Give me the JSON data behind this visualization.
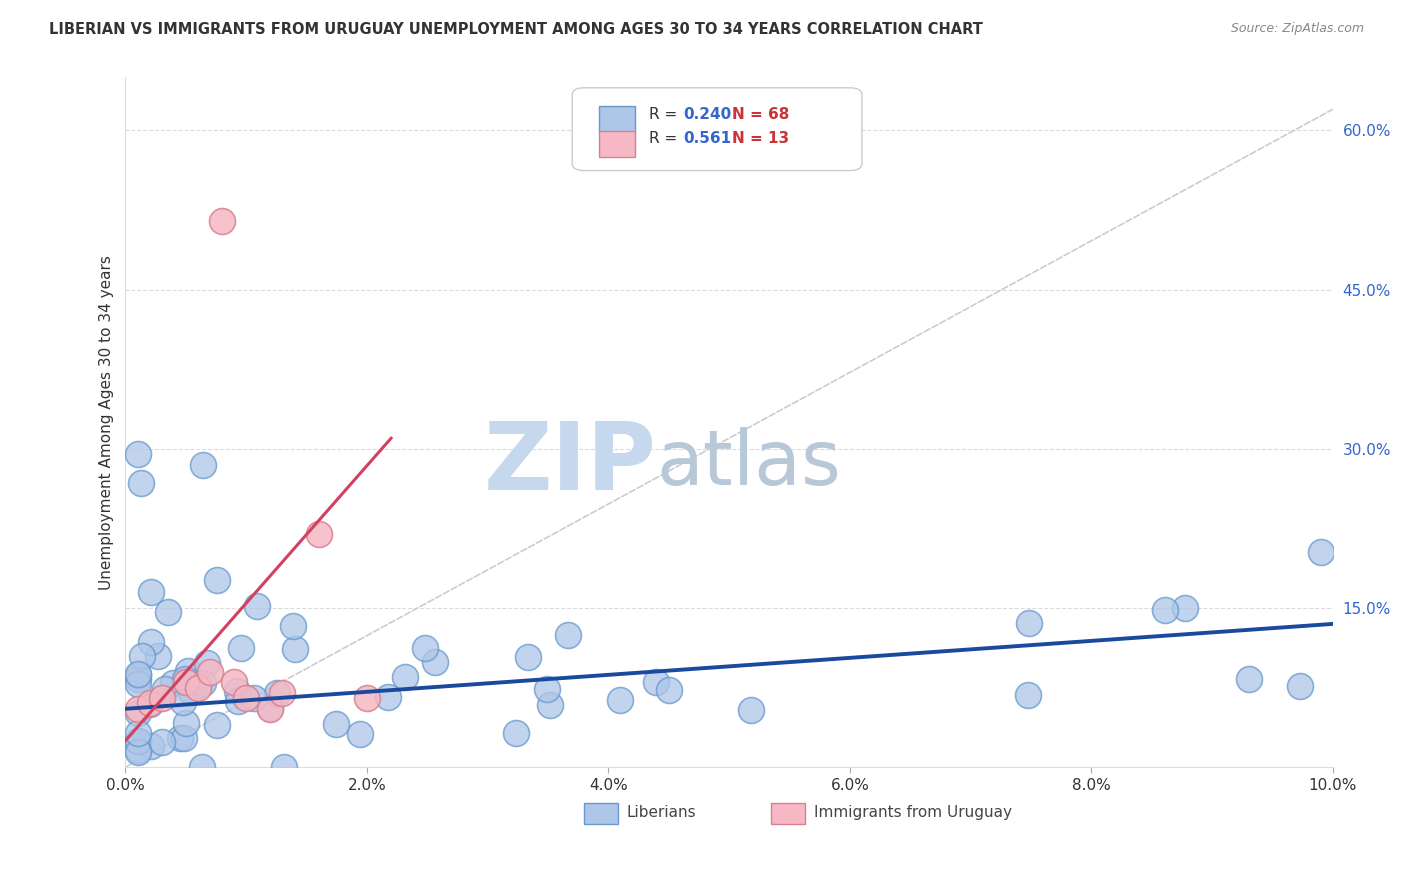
{
  "title": "LIBERIAN VS IMMIGRANTS FROM URUGUAY UNEMPLOYMENT AMONG AGES 30 TO 34 YEARS CORRELATION CHART",
  "source": "Source: ZipAtlas.com",
  "ylabel": "Unemployment Among Ages 30 to 34 years",
  "xlim": [
    0.0,
    0.1
  ],
  "ylim": [
    0.0,
    0.65
  ],
  "xticks": [
    0.0,
    0.02,
    0.04,
    0.06,
    0.08,
    0.1
  ],
  "xtick_labels": [
    "0.0%",
    "2.0%",
    "4.0%",
    "6.0%",
    "8.0%",
    "10.0%"
  ],
  "ytick_labels": [
    "15.0%",
    "30.0%",
    "45.0%",
    "60.0%"
  ],
  "ytick_vals": [
    0.15,
    0.3,
    0.45,
    0.6
  ],
  "liberian_R": 0.24,
  "liberian_N": 68,
  "uruguay_R": 0.561,
  "uruguay_N": 13,
  "liberian_color": "#aec6e8",
  "liberian_edge": "#6699cc",
  "liberian_line_color": "#1a4a9e",
  "uruguay_color": "#f5b8c4",
  "uruguay_edge": "#d98090",
  "uruguay_line_color": "#d44060",
  "watermark_zip": "ZIP",
  "watermark_atlas": "atlas",
  "watermark_color_zip": "#c5d8ee",
  "watermark_color_atlas": "#b8c8d8",
  "legend_label_1": "Liberians",
  "legend_label_2": "Immigrants from Uruguay",
  "r_color": "#3366cc",
  "n_color": "#cc3333",
  "title_color": "#333333",
  "source_color": "#888888",
  "ylabel_color": "#333333",
  "ytick_color": "#3366cc",
  "xtick_color": "#333333",
  "grid_color": "#cccccc"
}
